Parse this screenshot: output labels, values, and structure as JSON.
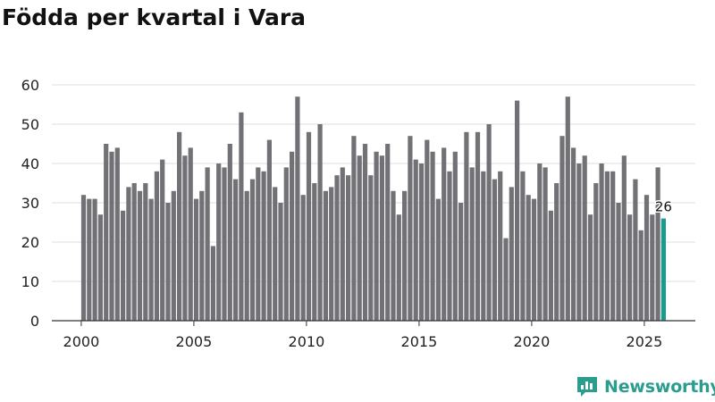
{
  "title": "Födda per kvartal i Vara",
  "brand": {
    "name": "Newsworthy",
    "icon": "newsworthy-logo-icon",
    "color": "#2a9d8f"
  },
  "chart_data": {
    "type": "bar",
    "title": "Födda per kvartal i Vara",
    "xlabel": "",
    "ylabel": "",
    "ylim": [
      0,
      60
    ],
    "yticks": [
      0,
      10,
      20,
      30,
      40,
      50,
      60
    ],
    "xticks": [
      "2000",
      "2005",
      "2010",
      "2015",
      "2020",
      "2025"
    ],
    "grid": true,
    "bar_color": "#727176",
    "highlight_color": "#1a9b8c",
    "highlight_label": "26",
    "start_year": 2000,
    "values": [
      32,
      31,
      31,
      27,
      45,
      43,
      44,
      28,
      34,
      35,
      33,
      35,
      31,
      38,
      41,
      30,
      33,
      48,
      42,
      44,
      31,
      33,
      39,
      19,
      40,
      39,
      45,
      36,
      53,
      33,
      36,
      39,
      38,
      46,
      34,
      30,
      39,
      43,
      57,
      32,
      48,
      35,
      50,
      33,
      34,
      37,
      39,
      37,
      47,
      42,
      45,
      37,
      43,
      42,
      45,
      33,
      27,
      33,
      47,
      41,
      40,
      46,
      43,
      31,
      44,
      38,
      43,
      30,
      48,
      39,
      48,
      38,
      50,
      36,
      38,
      21,
      34,
      56,
      38,
      32,
      31,
      40,
      39,
      28,
      35,
      47,
      57,
      44,
      40,
      42,
      27,
      35,
      40,
      38,
      38,
      30,
      42,
      27,
      36,
      23,
      32,
      27,
      39,
      26
    ]
  }
}
